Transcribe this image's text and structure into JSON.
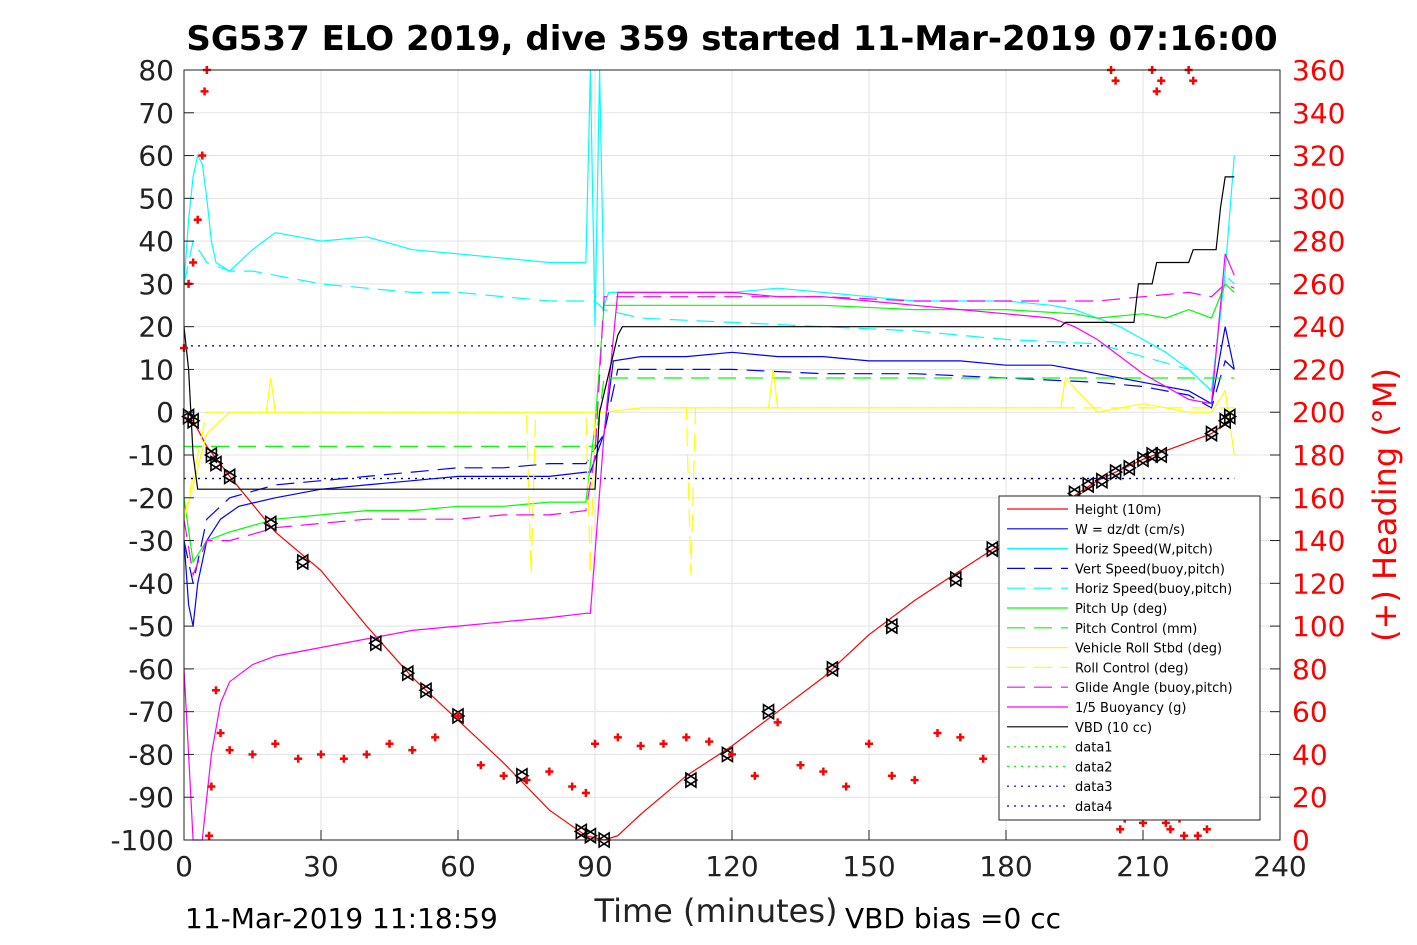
{
  "chart_data": {
    "type": "line",
    "title": "SG537 ELO 2019, dive 359 started 11-Mar-2019 07:16:00",
    "xlabel": "Time (minutes)",
    "ylabel": "",
    "ylabel_right": "(+) Heading (°M)",
    "xlim": [
      0,
      240
    ],
    "ylim": [
      -100,
      80
    ],
    "ylim_right": [
      0,
      360
    ],
    "xticks": [
      0,
      30,
      60,
      90,
      120,
      150,
      180,
      210,
      240
    ],
    "yticks": [
      80,
      70,
      60,
      50,
      40,
      30,
      20,
      10,
      0,
      -10,
      -20,
      -30,
      -40,
      -50,
      -60,
      -70,
      -80,
      -90,
      -100
    ],
    "yticks_right": [
      360,
      340,
      320,
      300,
      280,
      260,
      240,
      220,
      200,
      180,
      160,
      140,
      120,
      100,
      80,
      60,
      40,
      20,
      0
    ],
    "grid": true,
    "legend_position": "bottom-right",
    "footer_left": "11-Mar-2019 11:18:59",
    "footer_right": "VBD bias =0 cc",
    "legend": [
      {
        "name": "Height (10m)",
        "color": "#ff0000",
        "dash": "solid"
      },
      {
        "name": "W = dz/dt (cm/s)",
        "color": "#0000ff",
        "dash": "solid"
      },
      {
        "name": "Horiz Speed(W,pitch)",
        "color": "#00ffff",
        "dash": "solid"
      },
      {
        "name": "Vert Speed(buoy,pitch)",
        "color": "#0000ff",
        "dash": "dashed"
      },
      {
        "name": "Horiz Speed(buoy,pitch)",
        "color": "#00ffff",
        "dash": "dashed"
      },
      {
        "name": "Pitch Up (deg)",
        "color": "#00ff00",
        "dash": "solid"
      },
      {
        "name": "Pitch Control (mm)",
        "color": "#00ff00",
        "dash": "dashed"
      },
      {
        "name": "Vehicle Roll Stbd (deg)",
        "color": "#ffff00",
        "dash": "solid"
      },
      {
        "name": "Roll Control (deg)",
        "color": "#ffff00",
        "dash": "dashed"
      },
      {
        "name": "Glide Angle (buoy,pitch)",
        "color": "#ff00ff",
        "dash": "dashed"
      },
      {
        "name": "1/5 Buoyancy (g)",
        "color": "#ff00ff",
        "dash": "solid"
      },
      {
        "name": "VBD (10 cc)",
        "color": "#000000",
        "dash": "solid"
      },
      {
        "name": "data1",
        "color": "#00ff00",
        "dash": "dotted"
      },
      {
        "name": "data2",
        "color": "#00ff00",
        "dash": "dotted"
      },
      {
        "name": "data3",
        "color": "#0000aa",
        "dash": "dotted"
      },
      {
        "name": "data4",
        "color": "#0000aa",
        "dash": "dotted"
      }
    ],
    "series": [
      {
        "name": "Height (10m)",
        "color": "#ff0000",
        "dash": "solid",
        "axis": "left",
        "x": [
          0,
          2,
          5,
          10,
          20,
          30,
          40,
          50,
          60,
          70,
          80,
          88,
          92,
          95,
          100,
          110,
          120,
          130,
          140,
          150,
          160,
          170,
          180,
          190,
          200,
          210,
          215,
          220,
          225,
          230
        ],
        "y": [
          -1,
          -2,
          -8,
          -15,
          -28,
          -37,
          -50,
          -62,
          -72,
          -82,
          -93,
          -99,
          -100,
          -99,
          -94,
          -85,
          -78,
          -70,
          -62,
          -52,
          -44,
          -37,
          -30,
          -23,
          -16,
          -11,
          -9,
          -7,
          -5,
          -1
        ],
        "markers": [
          [
            1,
            -1
          ],
          [
            2,
            -2
          ],
          [
            6,
            -10
          ],
          [
            7,
            -12
          ],
          [
            10,
            -15
          ],
          [
            19,
            -26
          ],
          [
            26,
            -35
          ],
          [
            42,
            -54
          ],
          [
            49,
            -61
          ],
          [
            53,
            -65
          ],
          [
            60,
            -71
          ],
          [
            74,
            -85
          ],
          [
            87,
            -98
          ],
          [
            89,
            -99
          ],
          [
            92,
            -100
          ],
          [
            111,
            -86
          ],
          [
            119,
            -80
          ],
          [
            128,
            -70
          ],
          [
            142,
            -60
          ],
          [
            155,
            -50
          ],
          [
            169,
            -39
          ],
          [
            177,
            -32
          ],
          [
            195,
            -19
          ],
          [
            198,
            -17
          ],
          [
            201,
            -16
          ],
          [
            204,
            -14
          ],
          [
            207,
            -13
          ],
          [
            210,
            -11
          ],
          [
            212,
            -10
          ],
          [
            214,
            -10
          ],
          [
            225,
            -5
          ],
          [
            228,
            -2
          ],
          [
            229,
            -1
          ]
        ]
      },
      {
        "name": "W = dz/dt (cm/s)",
        "color": "#0000ff",
        "dash": "solid",
        "axis": "left",
        "x": [
          0,
          1,
          2,
          3,
          5,
          8,
          12,
          20,
          30,
          40,
          50,
          60,
          70,
          80,
          88,
          89,
          92,
          94,
          100,
          110,
          120,
          130,
          140,
          150,
          160,
          170,
          180,
          190,
          195,
          200,
          205,
          210,
          215,
          220,
          225,
          228,
          230
        ],
        "y": [
          -30,
          -45,
          -50,
          -40,
          -30,
          -25,
          -22,
          -20,
          -18,
          -17,
          -16,
          -15,
          -15,
          -15,
          -14,
          -14,
          -5,
          12,
          13,
          13,
          14,
          13,
          13,
          12,
          12,
          12,
          11,
          11,
          10,
          9,
          8,
          7,
          6,
          5,
          2,
          20,
          10
        ]
      },
      {
        "name": "Horiz Speed(W,pitch)",
        "color": "#00ffff",
        "dash": "solid",
        "axis": "left",
        "x": [
          0,
          1,
          2,
          3,
          4,
          5,
          6,
          7,
          10,
          15,
          20,
          25,
          30,
          40,
          50,
          60,
          70,
          80,
          88,
          89,
          90,
          91,
          92,
          93,
          100,
          110,
          120,
          130,
          140,
          150,
          160,
          170,
          180,
          190,
          195,
          200,
          205,
          210,
          215,
          220,
          225,
          228,
          230
        ],
        "y": [
          30,
          45,
          55,
          60,
          58,
          50,
          40,
          35,
          33,
          38,
          42,
          41,
          40,
          41,
          38,
          37,
          36,
          35,
          35,
          80,
          20,
          80,
          25,
          28,
          28,
          28,
          28,
          29,
          28,
          27,
          26,
          26,
          26,
          25,
          24,
          22,
          20,
          17,
          14,
          10,
          5,
          33,
          60
        ]
      },
      {
        "name": "Vert Speed(buoy,pitch)",
        "color": "#0000ff",
        "dash": "dashed",
        "axis": "left",
        "x": [
          0,
          2,
          5,
          10,
          20,
          30,
          40,
          50,
          60,
          70,
          80,
          88,
          92,
          95,
          100,
          120,
          140,
          160,
          180,
          200,
          210,
          220,
          225,
          228,
          230
        ],
        "y": [
          -30,
          -40,
          -25,
          -20,
          -17,
          -16,
          -15,
          -14,
          -13,
          -13,
          -12,
          -12,
          -5,
          10,
          10,
          10,
          9,
          9,
          8,
          7,
          6,
          4,
          1,
          12,
          10
        ]
      },
      {
        "name": "Horiz Speed(buoy,pitch)",
        "color": "#00ffff",
        "dash": "dashed",
        "axis": "left",
        "x": [
          0,
          2,
          5,
          10,
          15,
          20,
          30,
          40,
          50,
          60,
          70,
          80,
          88,
          90,
          92,
          100,
          120,
          140,
          160,
          180,
          200,
          210,
          220,
          225,
          228,
          230
        ],
        "y": [
          30,
          40,
          35,
          33,
          33,
          32,
          30,
          29,
          28,
          28,
          27,
          26,
          26,
          26,
          24,
          22,
          21,
          20,
          19,
          17,
          16,
          13,
          10,
          5,
          32,
          30
        ]
      },
      {
        "name": "Pitch Up (deg)",
        "color": "#00ff00",
        "dash": "solid",
        "axis": "left",
        "x": [
          0,
          2,
          5,
          10,
          20,
          30,
          40,
          50,
          60,
          70,
          80,
          88,
          90,
          92,
          100,
          120,
          140,
          160,
          180,
          195,
          200,
          210,
          215,
          220,
          225,
          228,
          230
        ],
        "y": [
          -20,
          -35,
          -30,
          -28,
          -25,
          -24,
          -23,
          -23,
          -22,
          -22,
          -21,
          -21,
          -3,
          25,
          25,
          25,
          25,
          24,
          24,
          23,
          22,
          23,
          22,
          24,
          22,
          30,
          28
        ]
      },
      {
        "name": "Pitch Control (mm)",
        "color": "#00ff00",
        "dash": "dashed",
        "axis": "left",
        "x": [
          0,
          3,
          5,
          90,
          92,
          230
        ],
        "y": [
          -8,
          -8,
          -8,
          -8,
          8,
          8
        ]
      },
      {
        "name": "Vehicle Roll Stbd (deg)",
        "color": "#ffff00",
        "dash": "solid",
        "axis": "left",
        "x": [
          0,
          5,
          10,
          18,
          19,
          20,
          30,
          40,
          50,
          60,
          70,
          80,
          88,
          90,
          92,
          100,
          110,
          120,
          128,
          129,
          130,
          140,
          160,
          180,
          192,
          193,
          200,
          210,
          220,
          225,
          228,
          230
        ],
        "y": [
          -25,
          -5,
          0,
          0,
          8,
          0,
          0,
          0,
          0,
          0,
          0,
          0,
          0,
          0,
          0,
          1,
          1,
          1,
          1,
          10,
          1,
          1,
          1,
          1,
          1,
          8,
          0,
          2,
          0,
          0,
          5,
          -10
        ]
      },
      {
        "name": "Roll Control (deg)",
        "color": "#ffff00",
        "dash": "dashed",
        "axis": "left",
        "x": [
          0,
          5,
          10,
          20,
          40,
          60,
          75,
          76,
          77,
          88,
          89,
          90,
          92,
          100,
          110,
          111,
          112,
          130,
          140,
          160,
          180,
          190,
          200,
          210,
          220,
          225,
          230
        ],
        "y": [
          -25,
          0,
          0,
          0,
          0,
          0,
          0,
          -38,
          0,
          0,
          -38,
          0,
          0,
          1,
          1,
          -38,
          1,
          1,
          1,
          1,
          1,
          1,
          1,
          1,
          1,
          1,
          1
        ]
      },
      {
        "name": "Glide Angle (buoy,pitch)",
        "color": "#ff00ff",
        "dash": "dashed",
        "axis": "left",
        "x": [
          0,
          2,
          5,
          10,
          20,
          30,
          40,
          50,
          60,
          70,
          80,
          88,
          90,
          92,
          100,
          120,
          140,
          160,
          180,
          195,
          200,
          210,
          220,
          225,
          228,
          230
        ],
        "y": [
          -25,
          -38,
          -30,
          -30,
          -27,
          -26,
          -25,
          -25,
          -25,
          -24,
          -24,
          -23,
          -10,
          27,
          27,
          27,
          27,
          26,
          26,
          26,
          26,
          27,
          28,
          27,
          30,
          29
        ]
      },
      {
        "name": "1/5 Buoyancy (g)",
        "color": "#ff00ff",
        "dash": "solid",
        "axis": "left",
        "x": [
          0,
          1,
          2,
          3,
          4,
          5,
          6,
          8,
          10,
          15,
          20,
          30,
          40,
          50,
          60,
          70,
          80,
          88,
          89,
          92,
          95,
          100,
          110,
          120,
          130,
          140,
          150,
          160,
          170,
          180,
          190,
          195,
          200,
          205,
          210,
          215,
          220,
          225,
          228,
          230
        ],
        "y": [
          -60,
          -80,
          -100,
          -100,
          -100,
          -90,
          -80,
          -68,
          -63,
          -59,
          -57,
          -55,
          -53,
          -51,
          -50,
          -49,
          -48,
          -47,
          -47,
          -5,
          28,
          28,
          28,
          28,
          27,
          27,
          26,
          25,
          24,
          23,
          22,
          20,
          17,
          13,
          9,
          6,
          3,
          2,
          37,
          32
        ]
      },
      {
        "name": "VBD (10 cc)",
        "color": "#000000",
        "dash": "solid",
        "axis": "left",
        "x": [
          0,
          1,
          2,
          3,
          90,
          91,
          95,
          96,
          192,
          193,
          208,
          209,
          212,
          213,
          220,
          221,
          226,
          227,
          228,
          230
        ],
        "y": [
          20,
          10,
          -10,
          -18,
          -18,
          0,
          18,
          20,
          20,
          21,
          21,
          30,
          30,
          35,
          35,
          38,
          38,
          48,
          55,
          55
        ]
      },
      {
        "name": "data1",
        "color": "#00ff00",
        "dash": "dotted",
        "axis": "left",
        "x": [
          0,
          230
        ],
        "y": [
          15.5,
          15.5
        ]
      },
      {
        "name": "data2",
        "color": "#00ff00",
        "dash": "dotted",
        "axis": "left",
        "x": [
          0,
          230
        ],
        "y": [
          -15.5,
          -15.5
        ]
      },
      {
        "name": "data3",
        "color": "#0000aa",
        "dash": "dotted",
        "axis": "left",
        "x": [
          0,
          230
        ],
        "y": [
          15.5,
          15.5
        ]
      },
      {
        "name": "data4",
        "color": "#0000aa",
        "dash": "dotted",
        "axis": "left",
        "x": [
          0,
          230
        ],
        "y": [
          -15.5,
          -15.5
        ]
      },
      {
        "name": "Heading",
        "color": "#ff0000",
        "dash": "markers",
        "axis": "right",
        "x": [
          0,
          1,
          2,
          3,
          4,
          4.5,
          5,
          5.5,
          6,
          7,
          8,
          10,
          15,
          20,
          25,
          30,
          35,
          40,
          45,
          50,
          55,
          60,
          65,
          70,
          75,
          80,
          85,
          88,
          90,
          95,
          100,
          105,
          110,
          115,
          120,
          125,
          130,
          135,
          140,
          145,
          150,
          155,
          160,
          165,
          170,
          175,
          180,
          185,
          190,
          195,
          200,
          203,
          204,
          205,
          206,
          210,
          212,
          213,
          214,
          215,
          216,
          218,
          219,
          220,
          221,
          222,
          224
        ],
        "y": [
          230,
          260,
          270,
          290,
          320,
          350,
          360,
          2,
          25,
          70,
          50,
          42,
          40,
          45,
          38,
          40,
          38,
          40,
          45,
          42,
          48,
          58,
          35,
          30,
          28,
          32,
          25,
          22,
          45,
          48,
          44,
          45,
          48,
          46,
          40,
          30,
          55,
          35,
          32,
          25,
          45,
          30,
          28,
          50,
          48,
          38,
          40,
          45,
          42,
          38,
          35,
          360,
          355,
          5,
          10,
          8,
          360,
          350,
          355,
          8,
          5,
          10,
          2,
          360,
          355,
          2,
          5
        ]
      }
    ]
  }
}
